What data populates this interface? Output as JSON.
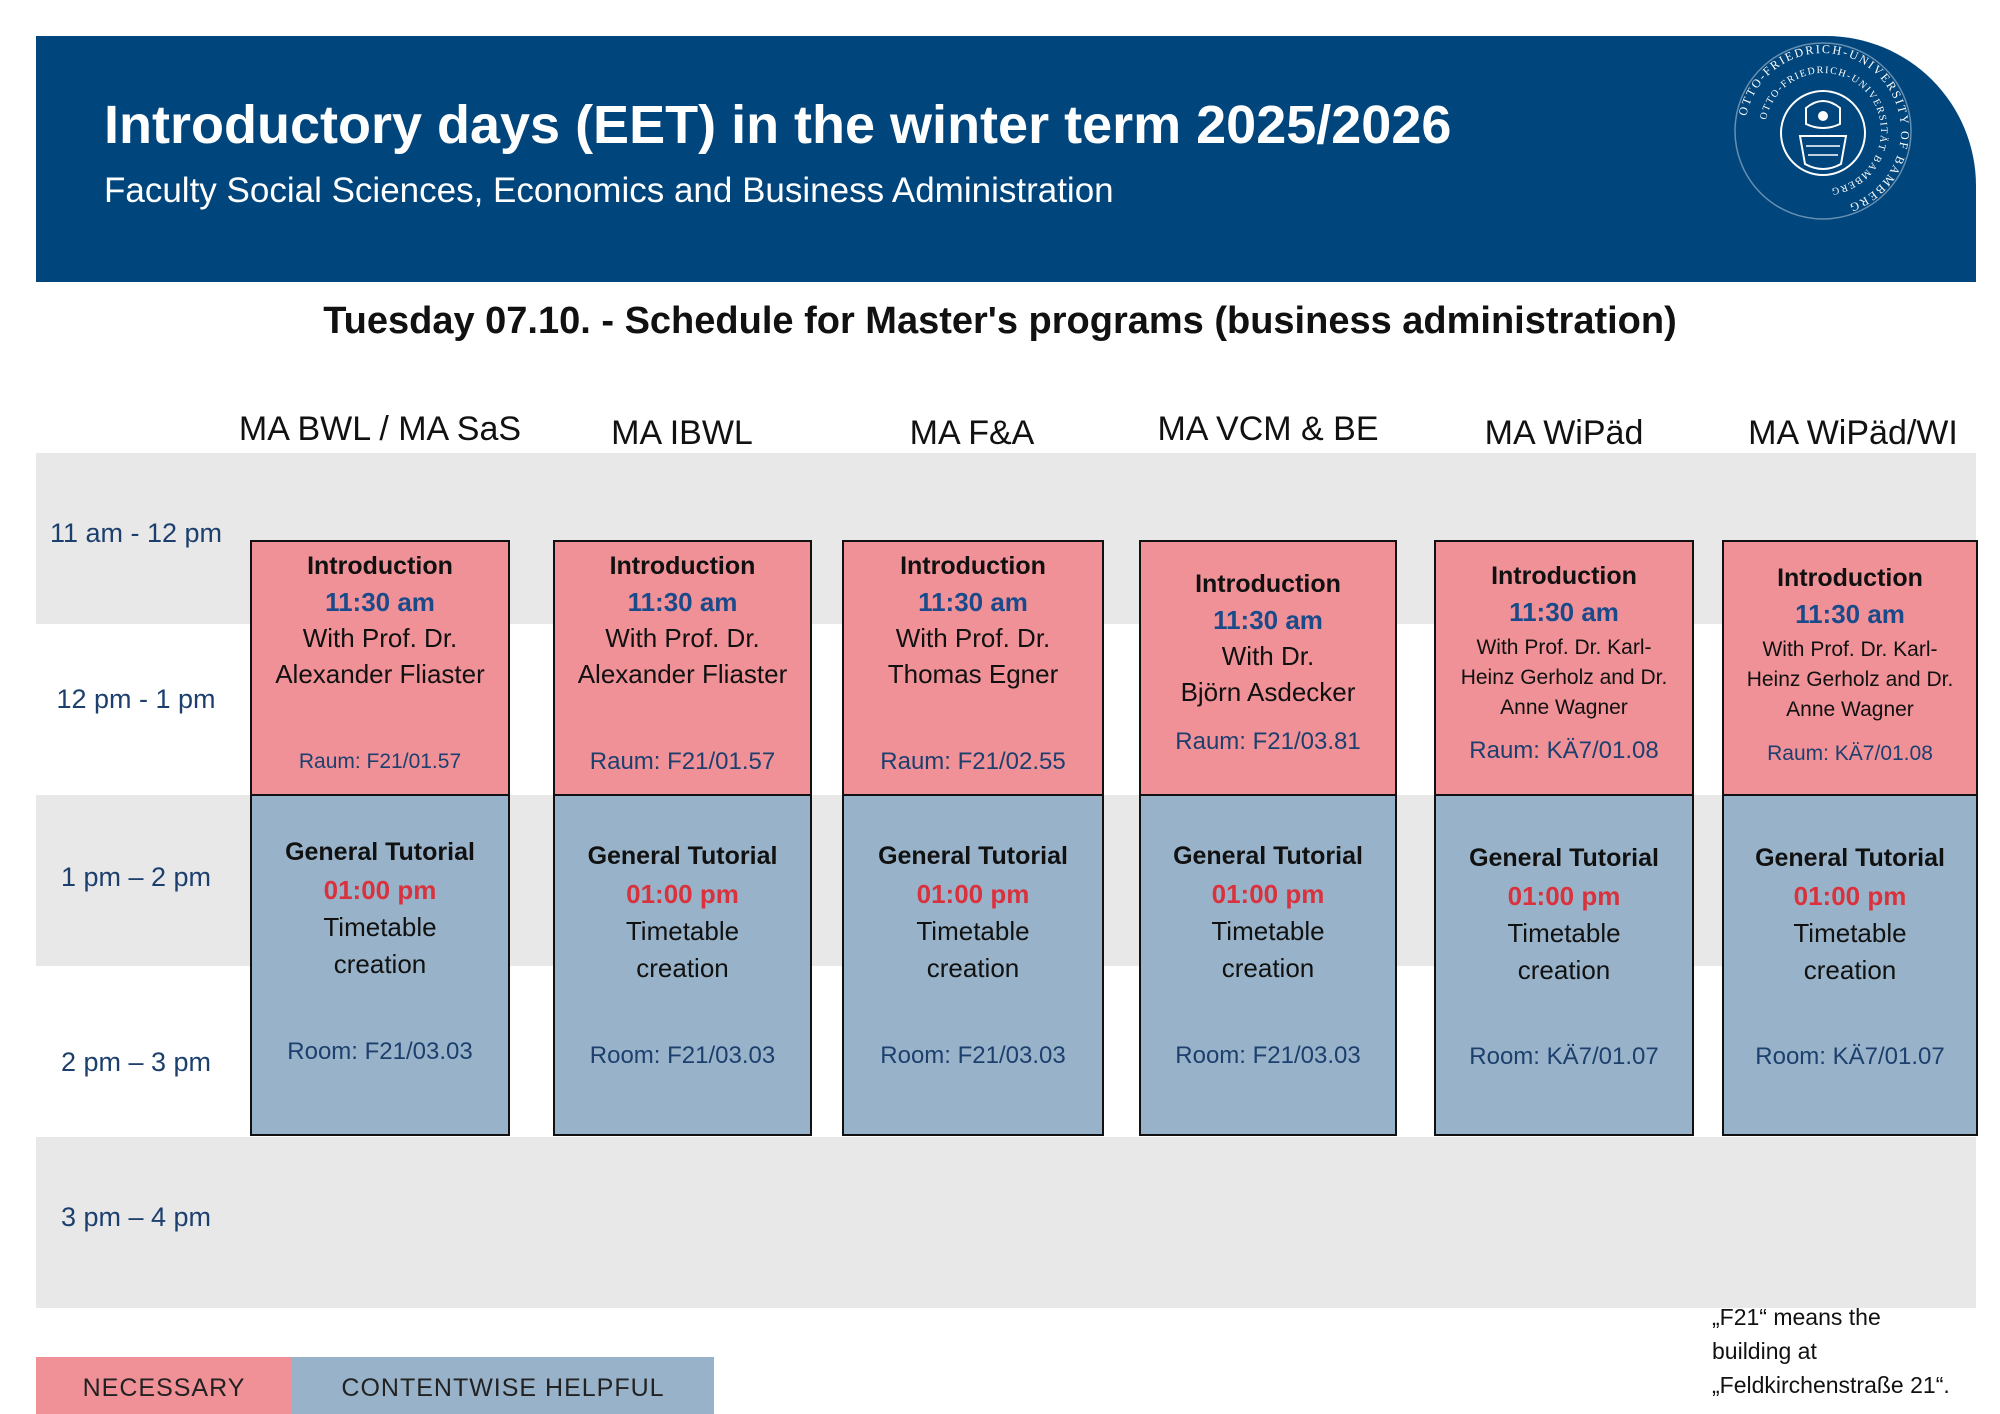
{
  "header": {
    "title": "Introductory days (EET) in the winter term 2025/2026",
    "subtitle": "Faculty Social Sciences, Economics and Business Administration",
    "seal_text_outer": "OTTO-FRIEDRICH-UNIVERSITY OF BAMBERG",
    "seal_text_inner": "OTTO-FRIEDRICH-UNIVERSITÄT BAMBERG"
  },
  "schedule_title": "Tuesday 07.10. - Schedule for Master's programs (business administration)",
  "time_slots": [
    "11 am - 12 pm",
    "12 pm - 1 pm",
    "1 pm – 2 pm",
    "2 pm – 3 pm",
    "3 pm – 4 pm"
  ],
  "columns": [
    {
      "program": "MA BWL / MA SaS",
      "intro": {
        "title": "Introduction",
        "time": "11:30 am",
        "line1": "With Prof. Dr.",
        "line2": "Alexander Fliaster",
        "line3": "",
        "room": "Raum: F21/01.57"
      },
      "tutorial": {
        "title": "General Tutorial",
        "time": "01:00 pm",
        "line1": "Timetable",
        "line2": "creation",
        "room": "Room: F21/03.03"
      }
    },
    {
      "program": "MA IBWL",
      "intro": {
        "title": "Introduction",
        "time": "11:30 am",
        "line1": "With Prof. Dr.",
        "line2": "Alexander Fliaster",
        "line3": "",
        "room": "Raum: F21/01.57"
      },
      "tutorial": {
        "title": "General Tutorial",
        "time": "01:00 pm",
        "line1": "Timetable",
        "line2": "creation",
        "room": "Room: F21/03.03"
      }
    },
    {
      "program": "MA F&A",
      "intro": {
        "title": "Introduction",
        "time": "11:30 am",
        "line1": "With Prof. Dr.",
        "line2": "Thomas Egner",
        "line3": "",
        "room": "Raum: F21/02.55"
      },
      "tutorial": {
        "title": "General Tutorial",
        "time": "01:00 pm",
        "line1": "Timetable",
        "line2": "creation",
        "room": "Room: F21/03.03"
      }
    },
    {
      "program": "MA VCM & BE",
      "intro": {
        "title": "Introduction",
        "time": "11:30 am",
        "line1": "With Dr.",
        "line2": "Björn Asdecker",
        "line3": "",
        "room": "Raum: F21/03.81"
      },
      "tutorial": {
        "title": "General Tutorial",
        "time": "01:00 pm",
        "line1": "Timetable",
        "line2": "creation",
        "room": "Room: F21/03.03"
      }
    },
    {
      "program": "MA WiPäd",
      "intro": {
        "title": "Introduction",
        "time": "11:30 am",
        "line1": "With Prof. Dr. Karl-",
        "line2": "Heinz Gerholz and Dr.",
        "line3": "Anne Wagner",
        "room": "Raum: KÄ7/01.08"
      },
      "tutorial": {
        "title": "General Tutorial",
        "time": "01:00 pm",
        "line1": "Timetable",
        "line2": "creation",
        "room": "Room: KÄ7/01.07"
      }
    },
    {
      "program": "MA WiPäd/WI",
      "intro": {
        "title": "Introduction",
        "time": "11:30 am",
        "line1": "With Prof. Dr. Karl-",
        "line2": "Heinz Gerholz and Dr.",
        "line3": "Anne Wagner",
        "room": "Raum: KÄ7/01.08"
      },
      "tutorial": {
        "title": "General Tutorial",
        "time": "01:00 pm",
        "line1": "Timetable",
        "line2": "creation",
        "room": "Room: KÄ7/01.07"
      }
    }
  ],
  "legend": {
    "necessary": "NECESSARY",
    "helpful": "CONTENTWISE HELPFUL"
  },
  "note": {
    "line1": "„F21“ means the",
    "line2": "building at",
    "line3": "„Feldkirchenstraße 21“."
  },
  "colors": {
    "header_bg": "#00457c",
    "necessary": "#f09198",
    "helpful": "#98b3c9",
    "band": "#e8e8e8"
  }
}
